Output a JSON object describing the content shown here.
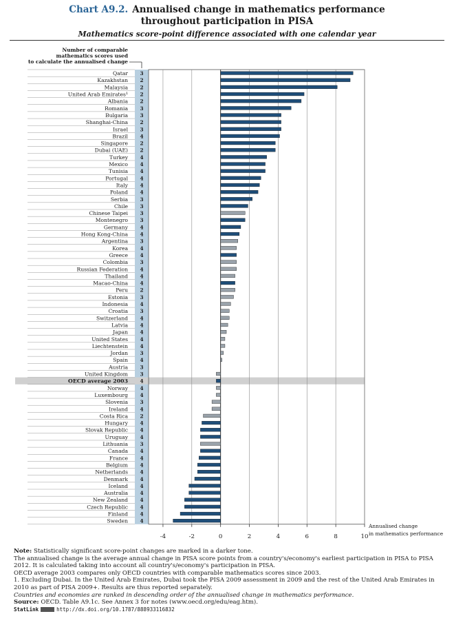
{
  "header": {
    "chart_number": "Chart A9.2.",
    "title_line1": "Annualised change in mathematics performance",
    "title_line2": "throughout participation in PISA",
    "subtitle": "Mathematics score-point difference associated with one calendar year"
  },
  "chart_data": {
    "type": "bar",
    "orientation": "horizontal",
    "column_header": [
      "Number of comparable",
      "mathematics scores used",
      "to calculate the annualised change"
    ],
    "xlabel": [
      "Annualised change",
      "in mathematics performance"
    ],
    "xlim": [
      -5,
      10
    ],
    "xticks": [
      -4,
      -2,
      0,
      2,
      4,
      6,
      8,
      10
    ],
    "grid": true,
    "colors": {
      "significant": "#1f4e79",
      "not_significant": "#9aa3ab",
      "count_column": "#b8cfe0",
      "highlight_row": "#d0d0d0"
    },
    "rows": [
      {
        "country": "Qatar",
        "n": "3",
        "value": 9.2,
        "significant": true
      },
      {
        "country": "Kazakhstan",
        "n": "2",
        "value": 9.0,
        "significant": true
      },
      {
        "country": "Malaysia",
        "n": "2",
        "value": 8.1,
        "significant": true
      },
      {
        "country": "United Arab Emirates¹",
        "n": "2",
        "value": 5.8,
        "significant": true
      },
      {
        "country": "Albania",
        "n": "2",
        "value": 5.6,
        "significant": true
      },
      {
        "country": "Romania",
        "n": "3",
        "value": 4.9,
        "significant": true
      },
      {
        "country": "Bulgaria",
        "n": "3",
        "value": 4.2,
        "significant": true
      },
      {
        "country": "Shanghai-China",
        "n": "2",
        "value": 4.2,
        "significant": true
      },
      {
        "country": "Israel",
        "n": "3",
        "value": 4.2,
        "significant": true
      },
      {
        "country": "Brazil",
        "n": "4",
        "value": 4.1,
        "significant": true
      },
      {
        "country": "Singapore",
        "n": "2",
        "value": 3.8,
        "significant": true
      },
      {
        "country": "Dubai (UAE)",
        "n": "2",
        "value": 3.8,
        "significant": true
      },
      {
        "country": "Turkey",
        "n": "4",
        "value": 3.2,
        "significant": true
      },
      {
        "country": "Mexico",
        "n": "4",
        "value": 3.1,
        "significant": true
      },
      {
        "country": "Tunisia",
        "n": "4",
        "value": 3.1,
        "significant": true
      },
      {
        "country": "Portugal",
        "n": "4",
        "value": 2.8,
        "significant": true
      },
      {
        "country": "Italy",
        "n": "4",
        "value": 2.7,
        "significant": true
      },
      {
        "country": "Poland",
        "n": "4",
        "value": 2.6,
        "significant": true
      },
      {
        "country": "Serbia",
        "n": "3",
        "value": 2.2,
        "significant": true
      },
      {
        "country": "Chile",
        "n": "3",
        "value": 1.9,
        "significant": true
      },
      {
        "country": "Chinese Taipei",
        "n": "3",
        "value": 1.7,
        "significant": false
      },
      {
        "country": "Montenegro",
        "n": "3",
        "value": 1.7,
        "significant": true
      },
      {
        "country": "Germany",
        "n": "4",
        "value": 1.4,
        "significant": true
      },
      {
        "country": "Hong Kong-China",
        "n": "4",
        "value": 1.3,
        "significant": true
      },
      {
        "country": "Argentina",
        "n": "3",
        "value": 1.2,
        "significant": false
      },
      {
        "country": "Korea",
        "n": "4",
        "value": 1.1,
        "significant": false
      },
      {
        "country": "Greece",
        "n": "4",
        "value": 1.1,
        "significant": true
      },
      {
        "country": "Colombia",
        "n": "3",
        "value": 1.1,
        "significant": false
      },
      {
        "country": "Russian Federation",
        "n": "4",
        "value": 1.1,
        "significant": false
      },
      {
        "country": "Thailand",
        "n": "4",
        "value": 1.0,
        "significant": false
      },
      {
        "country": "Macao-China",
        "n": "4",
        "value": 1.0,
        "significant": true
      },
      {
        "country": "Peru",
        "n": "2",
        "value": 1.0,
        "significant": false
      },
      {
        "country": "Estonia",
        "n": "3",
        "value": 0.9,
        "significant": false
      },
      {
        "country": "Indonesia",
        "n": "4",
        "value": 0.7,
        "significant": false
      },
      {
        "country": "Croatia",
        "n": "3",
        "value": 0.6,
        "significant": false
      },
      {
        "country": "Switzerland",
        "n": "4",
        "value": 0.6,
        "significant": false
      },
      {
        "country": "Latvia",
        "n": "4",
        "value": 0.5,
        "significant": false
      },
      {
        "country": "Japan",
        "n": "4",
        "value": 0.4,
        "significant": false
      },
      {
        "country": "United States",
        "n": "4",
        "value": 0.3,
        "significant": false
      },
      {
        "country": "Liechtenstein",
        "n": "4",
        "value": 0.3,
        "significant": false
      },
      {
        "country": "Jordan",
        "n": "3",
        "value": 0.2,
        "significant": false
      },
      {
        "country": "Spain",
        "n": "4",
        "value": 0.1,
        "significant": false
      },
      {
        "country": "Austria",
        "n": "3",
        "value": 0.0,
        "significant": false
      },
      {
        "country": "United Kingdom",
        "n": "3",
        "value": -0.3,
        "significant": false
      },
      {
        "country": "OECD average 2003",
        "n": "4",
        "value": -0.3,
        "significant": true,
        "highlight": true
      },
      {
        "country": "Norway",
        "n": "4",
        "value": -0.3,
        "significant": false
      },
      {
        "country": "Luxembourg",
        "n": "4",
        "value": -0.3,
        "significant": false
      },
      {
        "country": "Slovenia",
        "n": "3",
        "value": -0.6,
        "significant": false
      },
      {
        "country": "Ireland",
        "n": "4",
        "value": -0.6,
        "significant": false
      },
      {
        "country": "Costa Rica",
        "n": "2",
        "value": -1.2,
        "significant": false
      },
      {
        "country": "Hungary",
        "n": "4",
        "value": -1.3,
        "significant": true
      },
      {
        "country": "Slovak Republic",
        "n": "4",
        "value": -1.4,
        "significant": true
      },
      {
        "country": "Uruguay",
        "n": "4",
        "value": -1.4,
        "significant": true
      },
      {
        "country": "Lithuania",
        "n": "3",
        "value": -1.4,
        "significant": false
      },
      {
        "country": "Canada",
        "n": "4",
        "value": -1.4,
        "significant": true
      },
      {
        "country": "France",
        "n": "4",
        "value": -1.5,
        "significant": true
      },
      {
        "country": "Belgium",
        "n": "4",
        "value": -1.6,
        "significant": true
      },
      {
        "country": "Netherlands",
        "n": "4",
        "value": -1.6,
        "significant": true
      },
      {
        "country": "Denmark",
        "n": "4",
        "value": -1.8,
        "significant": true
      },
      {
        "country": "Iceland",
        "n": "4",
        "value": -2.2,
        "significant": true
      },
      {
        "country": "Australia",
        "n": "4",
        "value": -2.2,
        "significant": true
      },
      {
        "country": "New Zealand",
        "n": "4",
        "value": -2.5,
        "significant": true
      },
      {
        "country": "Czech Republic",
        "n": "4",
        "value": -2.5,
        "significant": true
      },
      {
        "country": "Finland",
        "n": "4",
        "value": -2.8,
        "significant": true
      },
      {
        "country": "Sweden",
        "n": "4",
        "value": -3.3,
        "significant": true
      }
    ]
  },
  "notes": {
    "note_label": "Note:",
    "note_text": "Statistically significant score-point changes are marked in a darker tone.",
    "line2": "The annualised change is the average annual change in PISA score points from a country's/economy's earliest participation in PISA to PISA 2012. It is calculated taking into account all country's/economy's participation in PISA.",
    "line3": "OECD average 2003 compares only OECD countries with comparable mathematics scores since 2003.",
    "line4": "1. Excluding Dubai. In the United Arab Emirates, Dubai took the PISA 2009 assessment in 2009 and the rest of the United Arab Emirates in 2010 as part of PISA 2009+. Results are thus reported separately.",
    "line5": "Countries and economies are ranked in descending order of the annualised change in mathematics performance.",
    "source_label": "Source:",
    "source_text": "OECD. Table A9.1c. See Annex 3 for notes (www.oecd.org/edu/eag.htm).",
    "statlink_word": "StatLink",
    "statlink_url": "http://dx.doi.org/10.1787/888933116832"
  }
}
